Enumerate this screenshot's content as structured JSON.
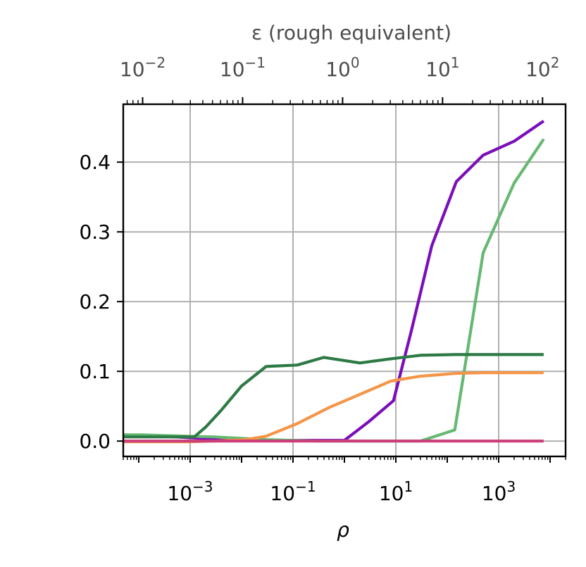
{
  "chart_data": {
    "type": "line",
    "xlabel": "ρ",
    "ylabel": "",
    "top_xlabel": "ε (rough equivalent)",
    "x_scale": "log",
    "xlim": [
      5e-05,
      20000
    ],
    "ylim": [
      -0.022,
      0.483
    ],
    "grid": true,
    "x_ticks": [
      {
        "value": 0.001,
        "base": "10",
        "exp": "−3"
      },
      {
        "value": 0.1,
        "base": "10",
        "exp": "−1"
      },
      {
        "value": 10,
        "base": "10",
        "exp": "1"
      },
      {
        "value": 1000,
        "base": "10",
        "exp": "3"
      }
    ],
    "y_ticks": [
      {
        "value": 0.0,
        "label": "0.0"
      },
      {
        "value": 0.1,
        "label": "0.1"
      },
      {
        "value": 0.2,
        "label": "0.2"
      },
      {
        "value": 0.3,
        "label": "0.3"
      },
      {
        "value": 0.4,
        "label": "0.4"
      }
    ],
    "top_axis": {
      "scale": "log",
      "xlim": [
        0.0064,
        170
      ],
      "ticks": [
        {
          "value": 0.01,
          "base": "10",
          "exp": "−2"
        },
        {
          "value": 0.1,
          "base": "10",
          "exp": "−1"
        },
        {
          "value": 1,
          "base": "10",
          "exp": "0"
        },
        {
          "value": 10,
          "base": "10",
          "exp": "1"
        },
        {
          "value": 100,
          "base": "10",
          "exp": "2"
        }
      ]
    },
    "series": [
      {
        "color": "#7a0fb8",
        "x": [
          5e-05,
          0.00012,
          0.0003,
          0.0009,
          0.003,
          0.01,
          0.03,
          0.1,
          0.3,
          1,
          3,
          9,
          20,
          50,
          150,
          500,
          2000,
          7500
        ],
        "y": [
          0.009,
          0.008,
          0.007,
          0.005,
          0.003,
          0.002,
          0.001,
          0.001,
          0.001,
          0.001,
          0.028,
          0.058,
          0.158,
          0.28,
          0.372,
          0.41,
          0.43,
          0.459
        ]
      },
      {
        "color": "#66b872",
        "x": [
          5e-05,
          0.00012,
          0.0003,
          0.0009,
          0.003,
          0.01,
          0.03,
          0.1,
          0.3,
          1,
          3,
          10,
          30,
          140,
          500,
          2000,
          7500
        ],
        "y": [
          0.009,
          0.009,
          0.008,
          0.007,
          0.006,
          0.004,
          0.002,
          0.001,
          0.0,
          0.0,
          0.0,
          0.0,
          0.0,
          0.016,
          0.27,
          0.37,
          0.433
        ]
      },
      {
        "color": "#2d7a45",
        "x": [
          5e-05,
          0.00012,
          0.0003,
          0.0012,
          0.002,
          0.004,
          0.01,
          0.03,
          0.12,
          0.4,
          2,
          8,
          30,
          140,
          500,
          2000,
          7500
        ],
        "y": [
          0.006,
          0.006,
          0.006,
          0.006,
          0.02,
          0.044,
          0.079,
          0.107,
          0.109,
          0.12,
          0.112,
          0.118,
          0.123,
          0.124,
          0.124,
          0.124,
          0.124
        ]
      },
      {
        "color": "#f59547",
        "x": [
          5e-05,
          0.00012,
          0.0003,
          0.001,
          0.003,
          0.012,
          0.03,
          0.12,
          0.5,
          2,
          8,
          30,
          140,
          500,
          2000,
          7500
        ],
        "y": [
          -0.001,
          -0.001,
          -0.001,
          -0.001,
          0.0,
          0.002,
          0.007,
          0.025,
          0.048,
          0.067,
          0.086,
          0.093,
          0.097,
          0.098,
          0.098,
          0.098
        ]
      },
      {
        "color": "#cc3d7a",
        "x": [
          5e-05,
          0.00012,
          0.0003,
          0.001,
          0.003,
          0.01,
          0.03,
          0.1,
          0.3,
          1,
          3,
          10,
          30,
          100,
          300,
          1000,
          3000,
          7500
        ],
        "y": [
          0.0,
          0.0,
          0.0,
          0.0,
          0.0,
          0.0,
          0.0,
          0.0,
          0.0,
          0.0,
          0.0,
          0.0,
          0.0,
          0.0,
          0.0,
          0.0,
          0.0,
          0.0
        ]
      }
    ]
  }
}
